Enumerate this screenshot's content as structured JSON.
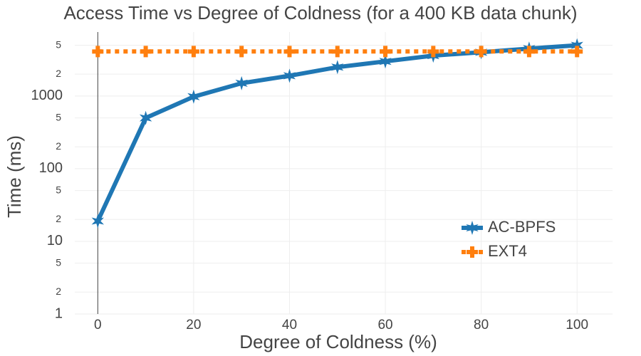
{
  "chart_data": {
    "type": "line",
    "title": "Access Time vs Degree of Coldness (for a 400 KB data chunk)",
    "x_label": "Degree of Coldness (%)",
    "y_label": "Time (ms)",
    "x": [
      0,
      10,
      20,
      30,
      40,
      50,
      60,
      70,
      80,
      90,
      100
    ],
    "series": [
      {
        "name": "AC-BPFS",
        "color": "#1f77b4",
        "marker": "star",
        "dash": "solid",
        "values": [
          19,
          500,
          980,
          1500,
          1900,
          2500,
          3000,
          3600,
          4000,
          4500,
          5000
        ]
      },
      {
        "name": "EXT4",
        "color": "#ff7f0e",
        "marker": "cross",
        "dash": "dot",
        "values": [
          4100,
          4100,
          4100,
          4100,
          4100,
          4100,
          4100,
          4100,
          4100,
          4100,
          4100
        ]
      }
    ],
    "xlim": [
      -4.8,
      107.4
    ],
    "xticks": [
      0,
      20,
      40,
      60,
      80,
      100
    ],
    "ylim": [
      1,
      7600
    ],
    "log_y": true,
    "yticks": [
      1,
      2,
      5,
      10,
      {
        "value": 20,
        "label": "2"
      },
      {
        "value": 50,
        "label": "5"
      },
      100,
      {
        "value": 200,
        "label": "2"
      },
      {
        "value": 500,
        "label": "5"
      },
      1000,
      {
        "value": 2000,
        "label": "2"
      },
      {
        "value": 5000,
        "label": "5"
      }
    ],
    "grid": true,
    "legend": "lower right"
  }
}
